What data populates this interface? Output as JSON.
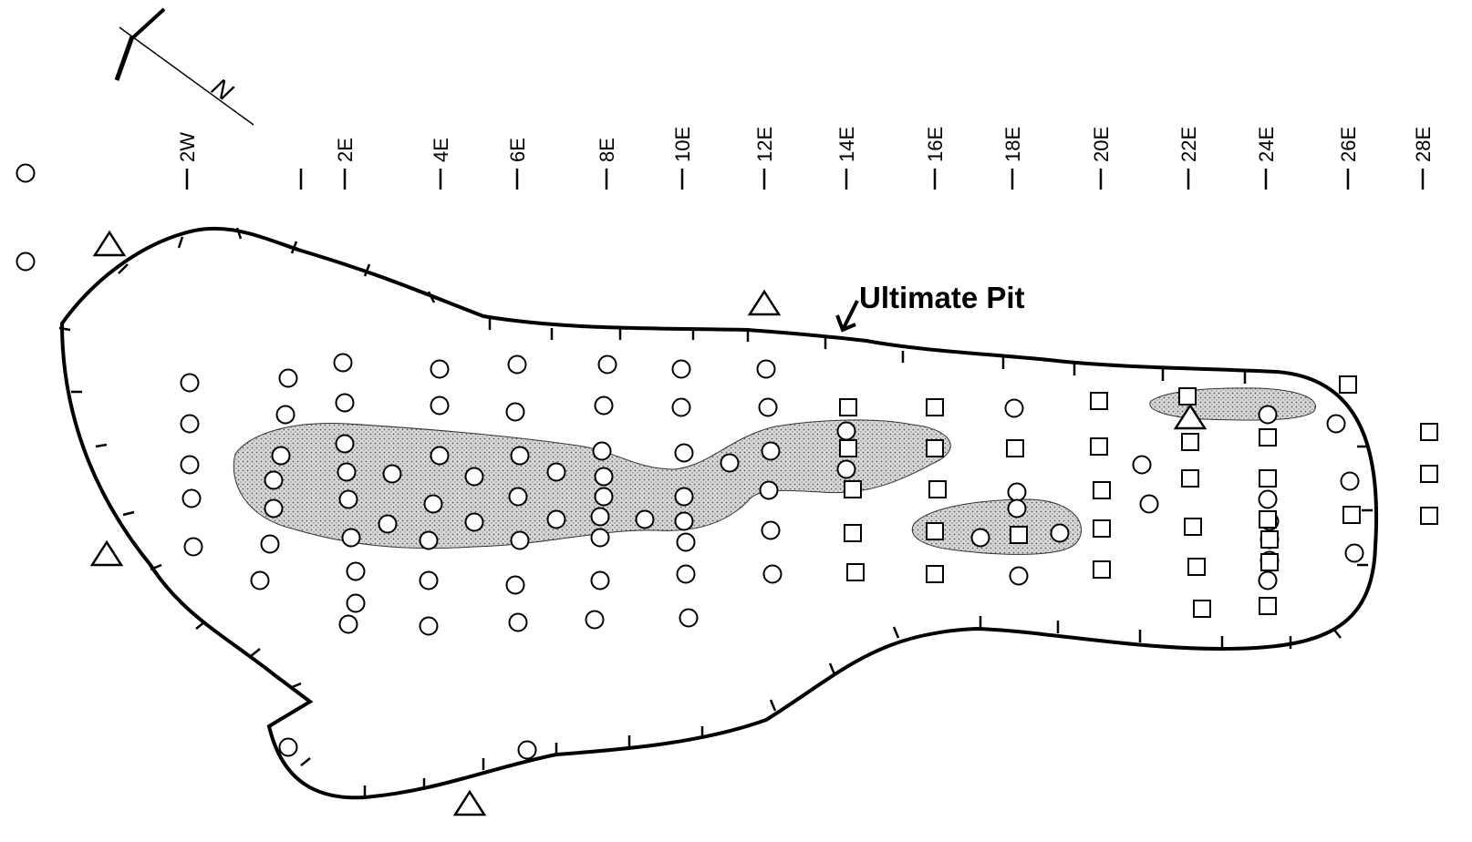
{
  "map": {
    "pit_label": "Ultimate Pit",
    "north_arrow_letter": "N",
    "sections": [
      "2W",
      "",
      "2E",
      "4E",
      "6E",
      "8E",
      "10E",
      "12E",
      "14E",
      "16E",
      "18E",
      "20E",
      "22E",
      "24E",
      "26E",
      "28E"
    ],
    "legend_colors": {
      "outline": "#000000",
      "ore_zone_fill": "#d4d4d4",
      "background": "#ffffff"
    },
    "symbol_types": [
      "circle-drillhole",
      "square-drillhole",
      "triangle-survey-point"
    ]
  }
}
